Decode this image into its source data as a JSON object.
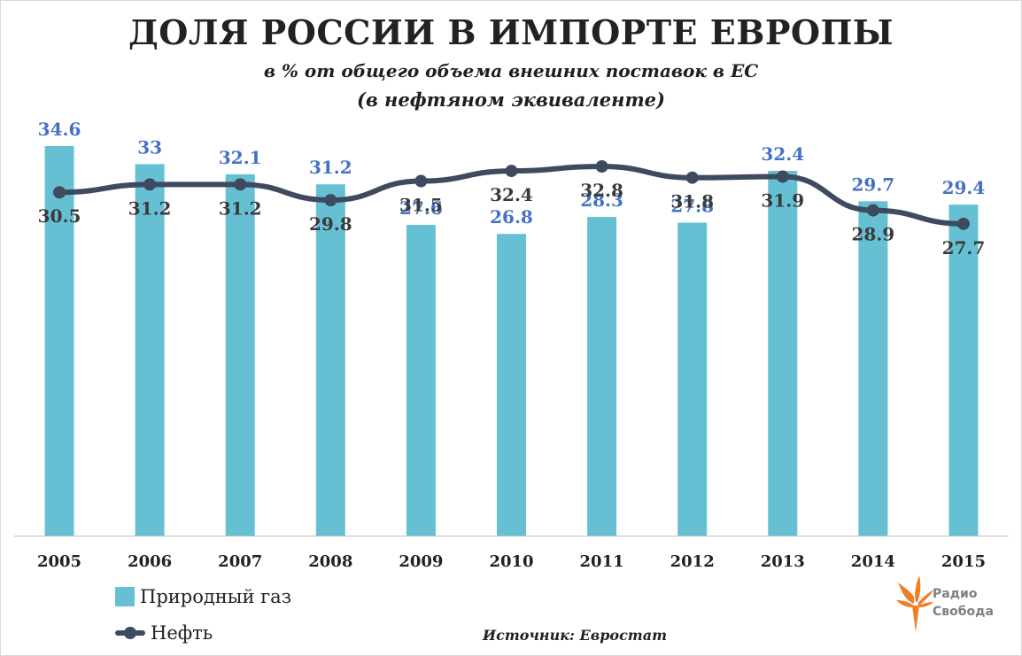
{
  "title": "ДОЛЯ РОССИИ В ИМПОРТЕ ЕВРОПЫ",
  "subtitle_line1": "в % от общего объема внешних поставок в ЕС",
  "subtitle_line2": "(в нефтяном эквиваленте)",
  "source": "Источник: Евростат",
  "logo": {
    "line1": "Радио",
    "line2": "Свобода"
  },
  "colors": {
    "bar": "#66c0d4",
    "line": "#3e4a5e",
    "bar_label": "#4472c4",
    "line_label": "#3a3a3a",
    "axis": "#bfbfbf",
    "logo": "#f07e26"
  },
  "chart_data": {
    "type": "bar+line",
    "categories": [
      "2005",
      "2006",
      "2007",
      "2008",
      "2009",
      "2010",
      "2011",
      "2012",
      "2013",
      "2014",
      "2015"
    ],
    "series": [
      {
        "name": "Природный газ",
        "type": "bar",
        "values": [
          34.6,
          33,
          32.1,
          31.2,
          27.6,
          26.8,
          28.3,
          27.8,
          32.4,
          29.7,
          29.4
        ]
      },
      {
        "name": "Нефть",
        "type": "line",
        "values": [
          30.5,
          31.2,
          31.2,
          29.8,
          31.5,
          32.4,
          32.8,
          31.8,
          31.9,
          28.9,
          27.7
        ]
      }
    ],
    "bar_label_text": [
      "34.6",
      "33",
      "32.1",
      "31.2",
      "27.6",
      "26.8",
      "28.3",
      "27.8",
      "32.4",
      "29.7",
      "29.4"
    ],
    "line_label_text": [
      "30.5",
      "31.2",
      "31.2",
      "29.8",
      "31.5",
      "32.4",
      "32.8",
      "31.8",
      "31.9",
      "28.9",
      "27.7"
    ],
    "bar_axis_range": [
      0,
      34.6
    ],
    "line_axis_range": [
      0,
      32.8
    ],
    "legend_position": "bottom-left"
  }
}
